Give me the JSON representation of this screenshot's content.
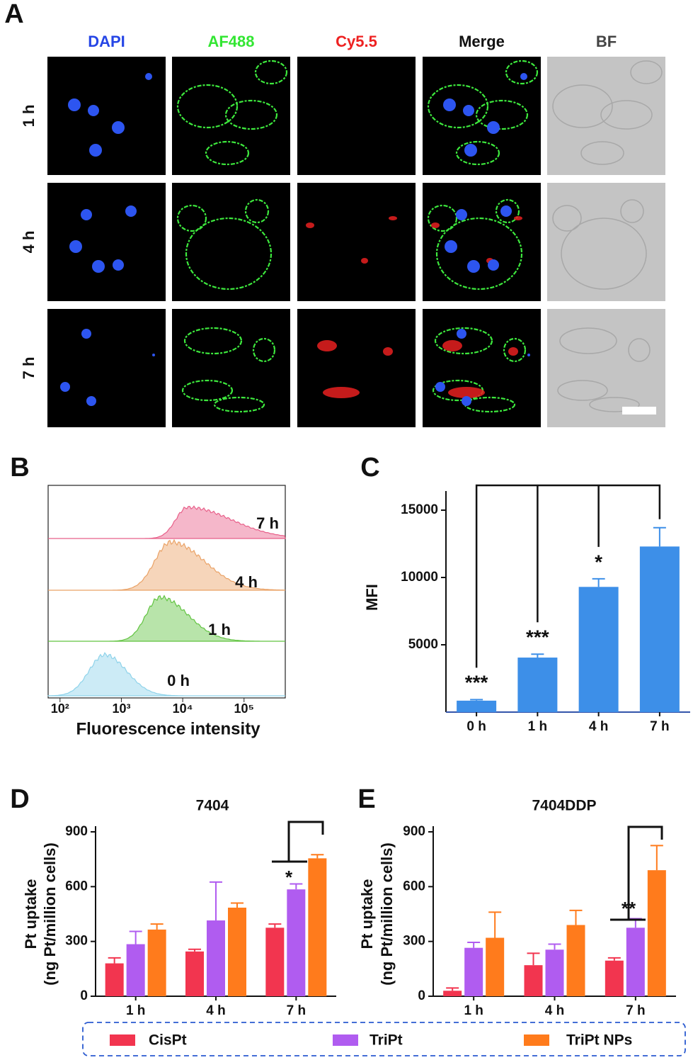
{
  "panel_labels": [
    "A",
    "B",
    "C",
    "D",
    "E"
  ],
  "microscopy": {
    "channels": [
      "DAPI",
      "AF488",
      "Cy5.5",
      "Merge",
      "BF"
    ],
    "channel_colors": [
      "#2646e6",
      "#33e633",
      "#ee2222",
      "#111111",
      "#444444"
    ],
    "times": [
      "1 h",
      "4 h",
      "7 h"
    ]
  },
  "chart_data": [
    {
      "type": "density",
      "xlabel": "Fluorescence intensity",
      "xscale": "log",
      "xlim": [
        64,
        470000
      ],
      "xticks": [
        {
          "value": 100,
          "label": "10²"
        },
        {
          "value": 1000,
          "label": "10³"
        },
        {
          "value": 10000,
          "label": "10⁴"
        },
        {
          "value": 100000,
          "label": "10⁵"
        }
      ],
      "series": [
        {
          "name": "0 h",
          "color": "#8fd3ea"
        },
        {
          "name": "1 h",
          "color": "#62c442"
        },
        {
          "name": "4 h",
          "color": "#eaa266"
        },
        {
          "name": "7 h",
          "color": "#e8608a"
        }
      ]
    },
    {
      "type": "bar",
      "ylabel": "MFI",
      "categories": [
        "0 h",
        "1 h",
        "4 h",
        "7 h"
      ],
      "values": [
        850,
        4050,
        9300,
        12300
      ],
      "errors": [
        80,
        250,
        600,
        1400
      ],
      "color": "#3d8fe8",
      "ylim": [
        0,
        16000
      ],
      "yticks": [
        5000,
        10000,
        15000
      ],
      "significance": [
        "***",
        "***",
        "*",
        null
      ]
    },
    {
      "type": "grouped_bar",
      "title": "7404",
      "ylabel": [
        "Pt uptake",
        "(ng Pt/million cells)"
      ],
      "categories": [
        "1 h",
        "4 h",
        "7 h"
      ],
      "series": [
        {
          "name": "CisPt",
          "color": "#f2354f",
          "values": [
            180,
            245,
            375
          ],
          "errors": [
            30,
            12,
            20
          ]
        },
        {
          "name": "TriPt",
          "color": "#b05cf0",
          "values": [
            285,
            415,
            585
          ],
          "errors": [
            70,
            210,
            30
          ]
        },
        {
          "name": "TriPt NPs",
          "color": "#ff7b1c",
          "values": [
            365,
            485,
            755
          ],
          "errors": [
            30,
            25,
            20
          ]
        }
      ],
      "ylim": [
        0,
        900
      ],
      "yticks": [
        0,
        300,
        600,
        900
      ],
      "annotations": [
        "*"
      ]
    },
    {
      "type": "grouped_bar",
      "title": "7404DDP",
      "ylabel": [
        "Pt uptake",
        "(ng Pt/million cells)"
      ],
      "categories": [
        "1 h",
        "4 h",
        "7 h"
      ],
      "series": [
        {
          "name": "CisPt",
          "color": "#f2354f",
          "values": [
            30,
            170,
            195
          ],
          "errors": [
            15,
            65,
            15
          ]
        },
        {
          "name": "TriPt",
          "color": "#b05cf0",
          "values": [
            265,
            255,
            375
          ],
          "errors": [
            30,
            30,
            50
          ]
        },
        {
          "name": "TriPt NPs",
          "color": "#ff7b1c",
          "values": [
            320,
            390,
            690
          ],
          "errors": [
            140,
            80,
            135
          ]
        }
      ],
      "ylim": [
        0,
        900
      ],
      "yticks": [
        0,
        300,
        600,
        900
      ],
      "annotations": [
        "**"
      ]
    }
  ]
}
